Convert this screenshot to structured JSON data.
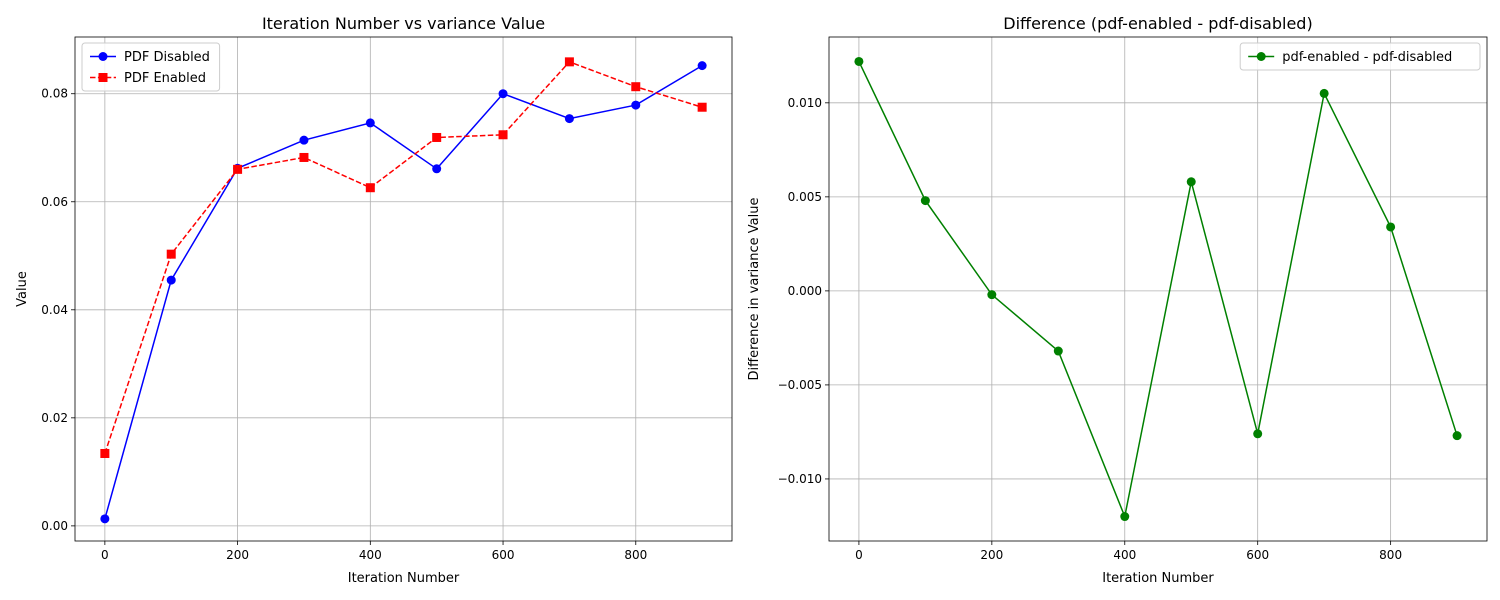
{
  "chart_data": [
    {
      "type": "line",
      "title": "Iteration Number vs variance Value",
      "xlabel": "Iteration Number",
      "ylabel": "Value",
      "xlim": [
        -45,
        945
      ],
      "ylim": [
        -0.0028,
        0.0905
      ],
      "xticks": [
        0,
        200,
        400,
        600,
        800
      ],
      "xtick_labels": [
        "0",
        "200",
        "400",
        "600",
        "800"
      ],
      "yticks": [
        0.0,
        0.02,
        0.04,
        0.06,
        0.08
      ],
      "ytick_labels": [
        "0.00",
        "0.02",
        "0.04",
        "0.06",
        "0.08"
      ],
      "grid": true,
      "legend_position": "top-left",
      "x": [
        0,
        100,
        200,
        300,
        400,
        500,
        600,
        700,
        800,
        900
      ],
      "series": [
        {
          "name": "PDF Disabled",
          "color": "#0000ff",
          "linestyle": "solid",
          "marker": "circle",
          "values": [
            0.0013,
            0.0455,
            0.0662,
            0.0714,
            0.0746,
            0.0661,
            0.08,
            0.0754,
            0.0779,
            0.0852
          ]
        },
        {
          "name": "PDF Enabled",
          "color": "#ff0000",
          "linestyle": "dashed",
          "marker": "square",
          "values": [
            0.0134,
            0.0503,
            0.066,
            0.0682,
            0.0626,
            0.0719,
            0.0724,
            0.0859,
            0.0813,
            0.0775
          ]
        }
      ]
    },
    {
      "type": "line",
      "title": "Difference (pdf-enabled - pdf-disabled)",
      "xlabel": "Iteration Number",
      "ylabel": "Difference in variance Value",
      "xlim": [
        -45,
        945
      ],
      "ylim": [
        -0.0133,
        0.0135
      ],
      "xticks": [
        0,
        200,
        400,
        600,
        800
      ],
      "xtick_labels": [
        "0",
        "200",
        "400",
        "600",
        "800"
      ],
      "yticks": [
        -0.01,
        -0.005,
        0.0,
        0.005,
        0.01
      ],
      "ytick_labels": [
        "−0.010",
        "−0.005",
        "0.000",
        "0.005",
        "0.010"
      ],
      "grid": true,
      "legend_position": "top-right",
      "x": [
        0,
        100,
        200,
        300,
        400,
        500,
        600,
        700,
        800,
        900
      ],
      "series": [
        {
          "name": "pdf-enabled - pdf-disabled",
          "color": "#008000",
          "linestyle": "solid",
          "marker": "circle",
          "values": [
            0.0122,
            0.0048,
            -0.0002,
            -0.0032,
            -0.012,
            0.0058,
            -0.0076,
            0.0105,
            0.0034,
            -0.0077
          ]
        }
      ]
    }
  ]
}
